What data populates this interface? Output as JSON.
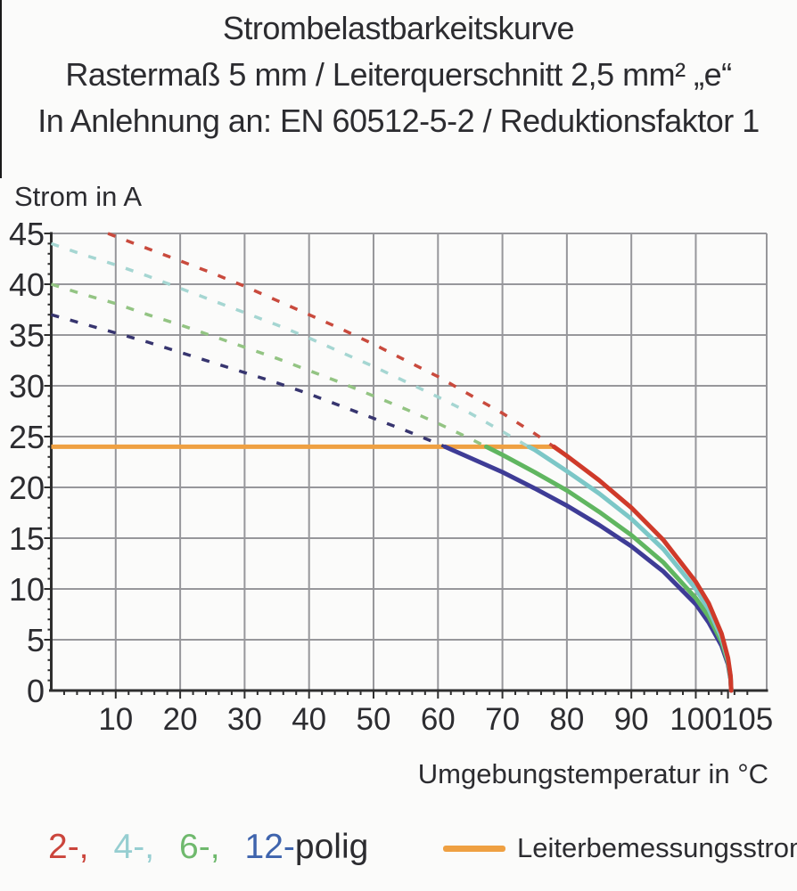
{
  "title": {
    "line1": "Strombelastbarkeitskurve",
    "line2": "Rastermaß 5 mm / Leiterquerschnitt 2,5 mm² „e“",
    "line3": "In Anlehnung an: EN 60512-5-2 / Reduktionsfaktor 1"
  },
  "axes": {
    "y_title": "Strom in A",
    "x_title": "Umgebungstemperatur in °C"
  },
  "legend": {
    "poles": [
      {
        "label": "2-,",
        "color": "#cb453c"
      },
      {
        "label": "4-,",
        "color": "#96ced1"
      },
      {
        "label": "6-,",
        "color": "#6fb96d"
      },
      {
        "label": "12-",
        "color": "#3f64ad"
      }
    ],
    "poles_suffix": "polig",
    "reference": {
      "label": "Leiterbemessungsstrom",
      "color": "#efa042"
    }
  },
  "colors": {
    "background": "#fbfbfa",
    "grid": "#97979b",
    "axis": "#2e2e2e",
    "text": "#2c2c30"
  },
  "chart_data": {
    "type": "line",
    "title": "Strombelastbarkeitskurve — Rastermaß 5 mm / Leiterquerschnitt 2,5 mm² „e“ — In Anlehnung an: EN 60512-5-2 / Reduktionsfaktor 1",
    "xlabel": "Umgebungstemperatur in °C",
    "ylabel": "Strom in A",
    "xlim": [
      0,
      111
    ],
    "ylim": [
      0,
      45
    ],
    "x_ticks_labeled": [
      10,
      20,
      30,
      40,
      50,
      60,
      70,
      80,
      90,
      100,
      105
    ],
    "x_gridlines": [
      10,
      20,
      30,
      40,
      50,
      60,
      70,
      80,
      90,
      100
    ],
    "y_ticks": [
      0,
      5,
      10,
      15,
      20,
      25,
      30,
      35,
      40,
      45
    ],
    "x_minor_step": 2,
    "y_minor_step": 1,
    "grid": true,
    "legend_position": "bottom",
    "dashed_above_value": 24,
    "reference_line": {
      "name": "Leiterbemessungsstrom",
      "value": 24,
      "t_range": [
        0,
        78
      ],
      "color": "#efa042"
    },
    "series": [
      {
        "name": "2-polig",
        "color": "#cf3a2a",
        "dash_color": "#c94a3d",
        "dashed": [
          [
            8.8,
            45
          ],
          [
            10,
            44.7
          ],
          [
            15,
            43.5
          ],
          [
            20,
            42.3
          ],
          [
            25,
            41.1
          ],
          [
            30,
            39.8
          ],
          [
            35,
            38.4
          ],
          [
            40,
            37
          ],
          [
            45,
            35.6
          ],
          [
            50,
            34.1
          ],
          [
            55,
            32.5
          ],
          [
            60,
            30.9
          ],
          [
            65,
            29.1
          ],
          [
            70,
            27.3
          ],
          [
            75,
            25.3
          ],
          [
            78,
            24
          ]
        ],
        "solid": [
          [
            78,
            24
          ],
          [
            80,
            23.1
          ],
          [
            85,
            20.7
          ],
          [
            90,
            18
          ],
          [
            95,
            14.8
          ],
          [
            100,
            10.7
          ],
          [
            102,
            8.6
          ],
          [
            104,
            5.6
          ],
          [
            105,
            3.2
          ],
          [
            105.4,
            1.4
          ],
          [
            105.5,
            0
          ]
        ]
      },
      {
        "name": "4-polig",
        "color": "#7cc7c7",
        "dash_color": "#a5d6d2",
        "dashed": [
          [
            0,
            44
          ],
          [
            5,
            42.9
          ],
          [
            10,
            41.9
          ],
          [
            15,
            40.8
          ],
          [
            20,
            39.6
          ],
          [
            25,
            38.4
          ],
          [
            30,
            37.2
          ],
          [
            35,
            36
          ],
          [
            40,
            34.7
          ],
          [
            45,
            33.3
          ],
          [
            50,
            31.9
          ],
          [
            55,
            30.4
          ],
          [
            60,
            28.9
          ],
          [
            65,
            27.3
          ],
          [
            70,
            25.5
          ],
          [
            74.1,
            24
          ]
        ],
        "solid": [
          [
            74.1,
            24
          ],
          [
            75,
            23.7
          ],
          [
            80,
            21.6
          ],
          [
            85,
            19.4
          ],
          [
            90,
            16.9
          ],
          [
            95,
            13.9
          ],
          [
            100,
            10
          ],
          [
            102,
            8
          ],
          [
            104,
            5.2
          ],
          [
            105,
            3
          ],
          [
            105.4,
            1.4
          ],
          [
            105.5,
            0
          ]
        ]
      },
      {
        "name": "6-polig",
        "color": "#60b660",
        "dash_color": "#93c483",
        "dashed": [
          [
            0,
            40
          ],
          [
            5,
            39
          ],
          [
            10,
            38.1
          ],
          [
            15,
            37
          ],
          [
            20,
            36
          ],
          [
            25,
            34.9
          ],
          [
            30,
            33.8
          ],
          [
            35,
            32.7
          ],
          [
            40,
            31.5
          ],
          [
            45,
            30.3
          ],
          [
            50,
            29
          ],
          [
            55,
            27.7
          ],
          [
            60,
            26.3
          ],
          [
            65,
            24.8
          ],
          [
            67.5,
            24
          ]
        ],
        "solid": [
          [
            67.5,
            24
          ],
          [
            70,
            23.2
          ],
          [
            75,
            21.5
          ],
          [
            80,
            19.7
          ],
          [
            85,
            17.6
          ],
          [
            90,
            15.3
          ],
          [
            95,
            12.6
          ],
          [
            100,
            9.1
          ],
          [
            102,
            7.3
          ],
          [
            104,
            4.8
          ],
          [
            105,
            2.8
          ],
          [
            105.4,
            1.2
          ],
          [
            105.5,
            0
          ]
        ]
      },
      {
        "name": "12-polig",
        "color": "#3e3c96",
        "dash_color": "#37356f",
        "dashed": [
          [
            0,
            37
          ],
          [
            5,
            36.1
          ],
          [
            10,
            35.2
          ],
          [
            15,
            34.3
          ],
          [
            20,
            33.3
          ],
          [
            25,
            32.3
          ],
          [
            30,
            31.3
          ],
          [
            35,
            30.3
          ],
          [
            40,
            29.2
          ],
          [
            45,
            28
          ],
          [
            50,
            26.8
          ],
          [
            55,
            25.6
          ],
          [
            60,
            24.3
          ],
          [
            61.1,
            24
          ]
        ],
        "solid": [
          [
            61.1,
            24
          ],
          [
            65,
            22.9
          ],
          [
            70,
            21.5
          ],
          [
            75,
            19.9
          ],
          [
            80,
            18.2
          ],
          [
            85,
            16.3
          ],
          [
            90,
            14.2
          ],
          [
            95,
            11.7
          ],
          [
            100,
            8.5
          ],
          [
            102,
            6.7
          ],
          [
            104,
            4.4
          ],
          [
            105,
            2.6
          ],
          [
            105.4,
            1.1
          ],
          [
            105.5,
            0
          ]
        ]
      }
    ]
  }
}
